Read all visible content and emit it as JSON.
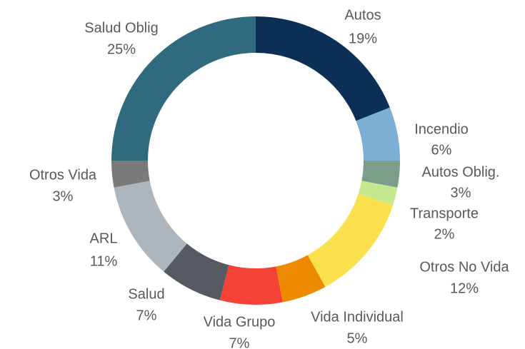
{
  "chart_data": {
    "type": "donut",
    "categories": [
      "Autos",
      "Incendio",
      "Autos Oblig.",
      "Transporte",
      "Otros No Vida",
      "Vida Individual",
      "Vida Grupo",
      "Salud",
      "ARL",
      "Otros Vida",
      "Salud Oblig"
    ],
    "values": [
      19,
      6,
      3,
      2,
      12,
      5,
      7,
      7,
      11,
      3,
      25
    ],
    "value_labels": [
      "19%",
      "6%",
      "3%",
      "2%",
      "12%",
      "5%",
      "7%",
      "7%",
      "11%",
      "3%",
      "25%"
    ],
    "colors": [
      "#0b2f55",
      "#7bafd4",
      "#7a9e8a",
      "#c5e88f",
      "#fbe04e",
      "#ee8a00",
      "#f44336",
      "#555a62",
      "#adb5bd",
      "#7a7a7a",
      "#2f6a7e"
    ]
  }
}
